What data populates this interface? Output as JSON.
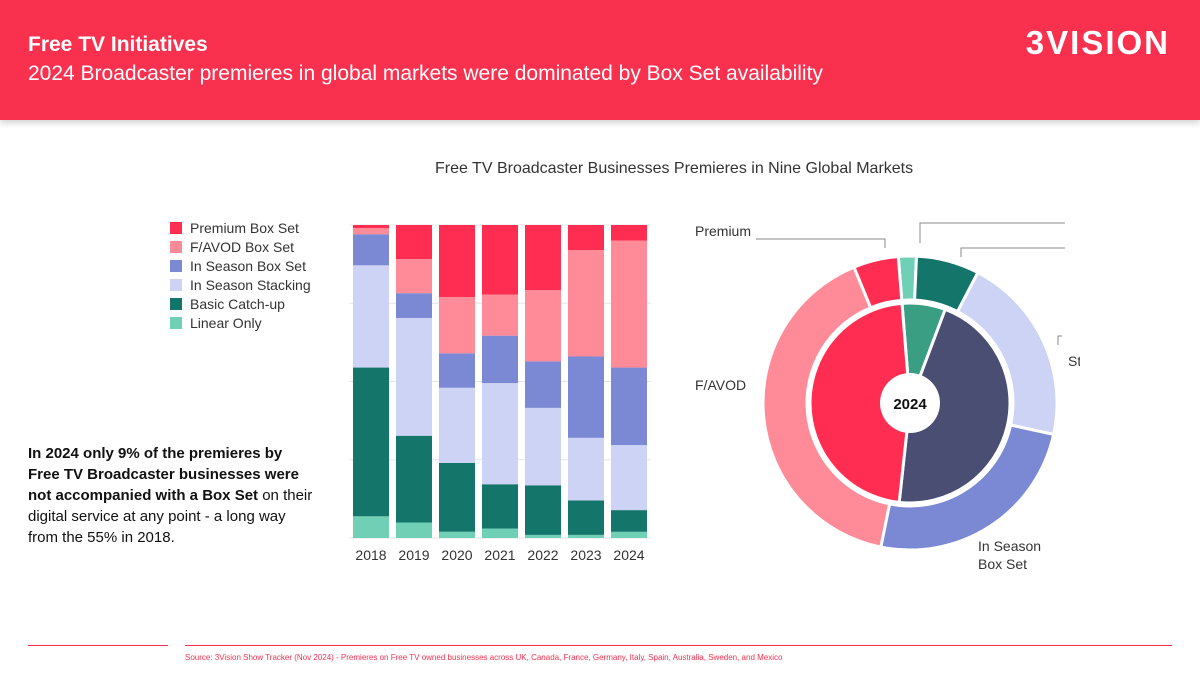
{
  "header": {
    "title": "Free TV Initiatives",
    "subtitle": "2024 Broadcaster premieres in global markets were dominated by Box Set availability",
    "logo_text": "3VISION"
  },
  "callout": {
    "bold": "In 2024 only 9% of the premieres by Free TV Broadcaster businesses were not accompanied with a Box Set",
    "normal": " on their digital service at any point -  a long way from the 55% in 2018."
  },
  "source": "Source: 3Vision Show Tracker (Nov 2024) - Premieres on Free TV owned businesses across UK, Canada, France, Germany, Italy, Spain, Australia, Sweden, and Mexico",
  "colors": {
    "brand": "#f9304e",
    "Premium Box Set": "#ff2d52",
    "F/AVOD Box Set": "#ff8a98",
    "In Season Box Set": "#7b88d4",
    "In Season Stacking": "#ccd3f5",
    "Basic Catch-up": "#14756a",
    "Linear Only": "#6fd0b6",
    "Inner Box Set": "#ff2d52",
    "Inner Non Box Set": "#4a4e72",
    "Inner Catch-up": "#3a9e83"
  },
  "chart_data": [
    {
      "type": "bar",
      "stacked": true,
      "normalized": true,
      "title": "Free TV Broadcaster Businesses Premieres in Nine Global Markets",
      "categories": [
        "2018",
        "2019",
        "2020",
        "2021",
        "2022",
        "2023",
        "2024"
      ],
      "ylim": [
        0,
        100
      ],
      "grid": true,
      "legend_position": "left",
      "series": [
        {
          "name": "Linear Only",
          "values": [
            7,
            5,
            2,
            3,
            1,
            1,
            2
          ]
        },
        {
          "name": "Basic Catch-up",
          "values": [
            48,
            28,
            22,
            14,
            16,
            11,
            7
          ]
        },
        {
          "name": "In Season Stacking",
          "values": [
            33,
            38,
            24,
            32,
            25,
            20,
            21
          ]
        },
        {
          "name": "In Season Box Set",
          "values": [
            10,
            8,
            11,
            15,
            15,
            26,
            25
          ]
        },
        {
          "name": "F/AVOD Box Set",
          "values": [
            2,
            11,
            18,
            13,
            23,
            34,
            41
          ]
        },
        {
          "name": "Premium Box Set",
          "values": [
            1,
            11,
            23,
            22,
            21,
            8,
            5
          ]
        }
      ]
    },
    {
      "type": "pie",
      "donut": true,
      "center_label": "2024",
      "outer": [
        {
          "name": "Linear Only",
          "value": 2
        },
        {
          "name": "Basic Catch-up",
          "value": 7
        },
        {
          "name": "In Season Stacking",
          "value": 21
        },
        {
          "name": "In Season Box Set",
          "value": 25
        },
        {
          "name": "F/AVOD Box Set",
          "value": 41
        },
        {
          "name": "Premium Box Set",
          "value": 5
        }
      ],
      "inner": [
        {
          "key": "Inner Catch-up",
          "value": 7
        },
        {
          "key": "Inner Non Box Set",
          "value": 46
        },
        {
          "key": "Inner Box Set",
          "value": 47
        }
      ],
      "annotations": {
        "premium": "Premium",
        "favod": "F/AVOD",
        "stacking": "Stacking",
        "in_season_1": "In Season",
        "in_season_2": "Box Set"
      }
    }
  ]
}
